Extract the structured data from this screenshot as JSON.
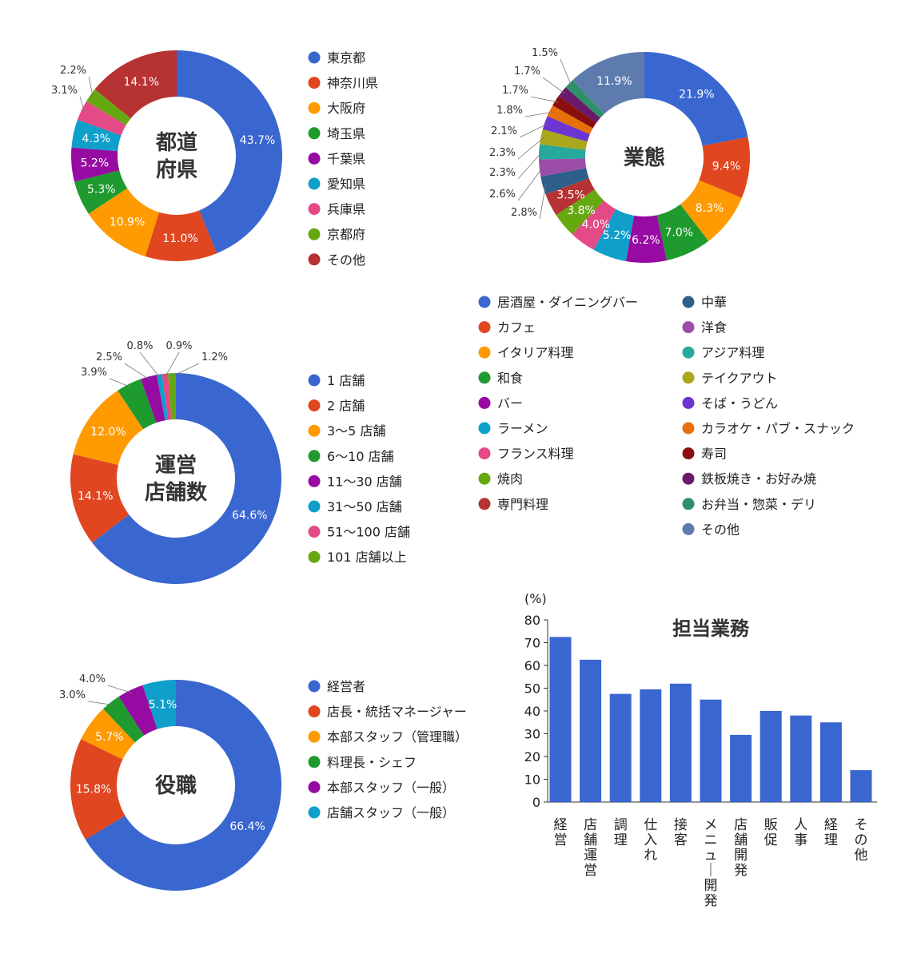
{
  "chart_data": [
    {
      "type": "pie",
      "title": "都道府県",
      "center_title_lines": [
        "都道",
        "府県"
      ],
      "categories": [
        "東京都",
        "神奈川県",
        "大阪府",
        "埼玉県",
        "千葉県",
        "愛知県",
        "兵庫県",
        "京都府",
        "その他"
      ],
      "values": [
        43.7,
        11.0,
        10.9,
        5.3,
        5.2,
        4.3,
        3.1,
        2.2,
        14.1
      ],
      "labels": [
        "43.7%",
        "11.0%",
        "10.9%",
        "5.3%",
        "5.2%",
        "4.3%",
        "3.1%",
        "2.2%",
        "14.1%"
      ],
      "colors": [
        "#3A66D0",
        "#E0461F",
        "#FF9B00",
        "#1E9A2E",
        "#970BA3",
        "#0E9FCB",
        "#E34A86",
        "#66A810",
        "#B73232"
      ],
      "label_inside": [
        true,
        true,
        true,
        true,
        true,
        true,
        false,
        false,
        true
      ],
      "legend_position": "right"
    },
    {
      "type": "pie",
      "title": "業態",
      "center_title_lines": [
        "業態"
      ],
      "categories": [
        "居酒屋・ダイニングバー",
        "カフェ",
        "イタリア料理",
        "和食",
        "バー",
        "ラーメン",
        "フランス料理",
        "焼肉",
        "専門料理",
        "中華",
        "洋食",
        "アジア料理",
        "テイクアウト",
        "そば・うどん",
        "カラオケ・パブ・スナック",
        "寿司",
        "鉄板焼き・お好み焼",
        "お弁当・惣菜・デリ",
        "その他"
      ],
      "values": [
        21.9,
        9.4,
        8.3,
        7.0,
        6.2,
        5.2,
        4.0,
        3.8,
        3.5,
        2.8,
        2.6,
        2.3,
        2.3,
        2.1,
        1.8,
        1.7,
        1.7,
        1.5,
        11.9
      ],
      "labels": [
        "21.9%",
        "9.4%",
        "8.3%",
        "7.0%",
        "6.2%",
        "5.2%",
        "4.0%",
        "3.8%",
        "3.5%",
        "2.8%",
        "2.6%",
        "2.3%",
        "2.3%",
        "2.1%",
        "1.8%",
        "1.7%",
        "1.7%",
        "1.5%",
        "11.9%"
      ],
      "colors": [
        "#3A66D0",
        "#E0461F",
        "#FF9B00",
        "#1E9A2E",
        "#970BA3",
        "#0E9FCB",
        "#E34A86",
        "#66A810",
        "#B73232",
        "#2E5F8A",
        "#9B4DA8",
        "#26A89A",
        "#A8A81A",
        "#6A35D0",
        "#E8700A",
        "#8B0E0E",
        "#6A1A6A",
        "#2E9068",
        "#5E7BAE"
      ],
      "label_inside": [
        true,
        true,
        true,
        true,
        true,
        true,
        true,
        true,
        true,
        false,
        false,
        false,
        false,
        false,
        false,
        false,
        false,
        false,
        true
      ],
      "legend_position": "bottom"
    },
    {
      "type": "pie",
      "title": "運営店舗数",
      "center_title_lines": [
        "運営",
        "店舗数"
      ],
      "categories": [
        "1 店舗",
        "2 店舗",
        "3〜5 店舗",
        "6〜10 店舗",
        "11〜30 店舗",
        "31〜50 店舗",
        "51〜100 店舗",
        "101 店舗以上"
      ],
      "values": [
        64.6,
        14.1,
        12.0,
        3.9,
        2.5,
        0.8,
        0.9,
        1.2
      ],
      "labels": [
        "64.6%",
        "14.1%",
        "12.0%",
        "3.9%",
        "2.5%",
        "0.8%",
        "0.9%",
        "1.2%"
      ],
      "colors": [
        "#3A66D0",
        "#E0461F",
        "#FF9B00",
        "#1E9A2E",
        "#970BA3",
        "#0E9FCB",
        "#E34A86",
        "#66A810"
      ],
      "label_inside": [
        true,
        true,
        true,
        false,
        false,
        false,
        false,
        false
      ],
      "legend_position": "right"
    },
    {
      "type": "pie",
      "title": "役職",
      "center_title_lines": [
        "役職"
      ],
      "categories": [
        "経営者",
        "店長・統括マネージャー",
        "本部スタッフ（管理職）",
        "料理長・シェフ",
        "本部スタッフ（一般）",
        "店舗スタッフ（一般）"
      ],
      "values": [
        66.4,
        15.8,
        5.7,
        3.0,
        4.0,
        5.1
      ],
      "labels": [
        "66.4%",
        "15.8%",
        "5.7%",
        "3.0%",
        "4.0%",
        "5.1%"
      ],
      "colors": [
        "#3A66D0",
        "#E0461F",
        "#FF9B00",
        "#1E9A2E",
        "#970BA3",
        "#0E9FCB"
      ],
      "label_inside": [
        true,
        true,
        true,
        false,
        false,
        true
      ],
      "legend_position": "right"
    },
    {
      "type": "bar",
      "title": "担当業務",
      "ylabel": "(%)",
      "ylim": [
        0,
        80
      ],
      "yticks": [
        0,
        10,
        20,
        30,
        40,
        50,
        60,
        70,
        80
      ],
      "categories": [
        "経営",
        "店舗運営",
        "調理",
        "仕入れ",
        "接客",
        "メニュー開発",
        "店舗開発",
        "販促",
        "人事",
        "経理",
        "その他"
      ],
      "values": [
        72.5,
        62.5,
        47.5,
        49.5,
        52,
        45,
        29.5,
        40,
        38,
        35,
        14
      ],
      "color": "#3A66D0",
      "grid": false
    }
  ]
}
